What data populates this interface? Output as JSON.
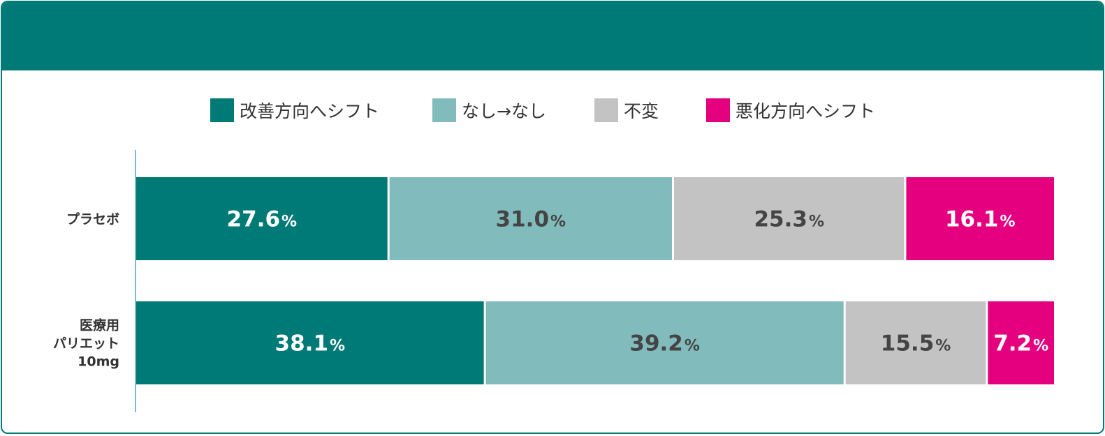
{
  "chart_data": {
    "type": "bar",
    "orientation": "horizontal",
    "stacked": true,
    "unit": "%",
    "legend_position": "top",
    "grid": false,
    "xlim": [
      0,
      100
    ],
    "categories": [
      {
        "label_lines": [
          "プラセボ"
        ]
      },
      {
        "label_lines": [
          "医療用",
          "パリエット",
          "10mg"
        ]
      }
    ],
    "series": [
      {
        "name": "改善方向へシフト",
        "color": "#007a76",
        "label_color": "#ffffff",
        "values": [
          27.6,
          38.1
        ]
      },
      {
        "name": "なし→なし",
        "color": "#82bbbb",
        "label_color": "#444444",
        "values": [
          31.0,
          39.2
        ]
      },
      {
        "name": "不変",
        "color": "#c3c3c3",
        "label_color": "#444444",
        "values": [
          25.3,
          15.5
        ]
      },
      {
        "name": "悪化方向へシフト",
        "color": "#e4007f",
        "label_color": "#ffffff",
        "values": [
          16.1,
          7.2
        ]
      }
    ]
  }
}
